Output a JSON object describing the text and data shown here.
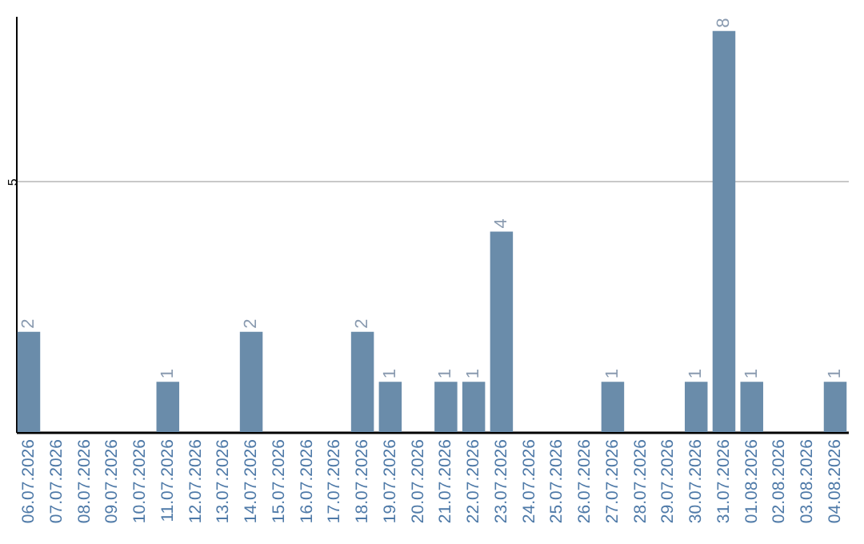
{
  "chart_data": {
    "type": "bar",
    "categories": [
      "06.07.2026",
      "07.07.2026",
      "08.07.2026",
      "09.07.2026",
      "10.07.2026",
      "11.07.2026",
      "12.07.2026",
      "13.07.2026",
      "14.07.2026",
      "15.07.2026",
      "16.07.2026",
      "17.07.2026",
      "18.07.2026",
      "19.07.2026",
      "20.07.2026",
      "21.07.2026",
      "22.07.2026",
      "23.07.2026",
      "24.07.2026",
      "25.07.2026",
      "26.07.2026",
      "27.07.2026",
      "28.07.2026",
      "29.07.2026",
      "30.07.2026",
      "31.07.2026",
      "01.08.2026",
      "02.08.2026",
      "03.08.2026",
      "04.08.2026"
    ],
    "values": [
      2,
      0,
      0,
      0,
      0,
      1,
      0,
      0,
      2,
      0,
      0,
      0,
      2,
      1,
      0,
      1,
      1,
      4,
      0,
      0,
      0,
      1,
      0,
      0,
      1,
      8,
      1,
      0,
      0,
      1
    ],
    "value_labels": [
      "2",
      null,
      null,
      null,
      null,
      "1",
      null,
      null,
      "2",
      null,
      null,
      null,
      "2",
      "1",
      null,
      "1",
      "1",
      "4",
      null,
      null,
      null,
      "1",
      null,
      null,
      "1",
      "8",
      "1",
      null,
      null,
      "1"
    ],
    "color": "#6a8caa",
    "ylim": [
      0,
      8.3
    ],
    "yticks": [
      5
    ],
    "grid": "y"
  }
}
